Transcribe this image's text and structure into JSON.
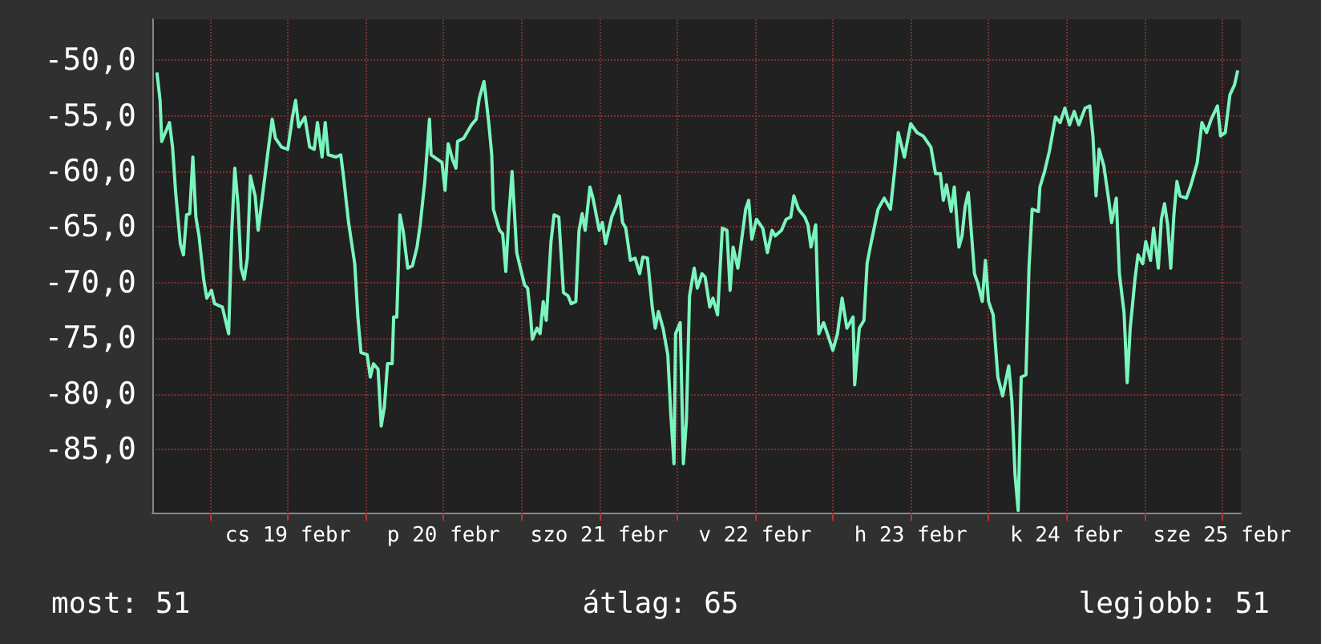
{
  "chart_data": {
    "type": "line",
    "x": [
      "--02-18T15:50",
      "--02-18T16:19",
      "--02-18T16:34",
      "--02-18T17:46",
      "--02-18T18:14",
      "--02-18T18:43",
      "--02-18T19:26",
      "--02-18T19:55",
      "--02-18T20:24",
      "--02-18T20:53",
      "--02-18T21:22",
      "--02-18T21:50",
      "--02-18T22:19",
      "--02-18T23:02",
      "--02-18T23:31",
      "--02-19T00:14",
      "--02-19T00:43",
      "--02-19T01:55",
      "--02-19T02:53",
      "--02-19T03:22",
      "--02-19T03:50",
      "--02-19T04:19",
      "--02-19T04:48",
      "--02-19T05:17",
      "--02-19T05:46",
      "--02-19T06:14",
      "--02-19T06:58",
      "--02-19T07:26",
      "--02-19T08:10",
      "--02-19T08:53",
      "--02-19T09:36",
      "--02-19T10:05",
      "--02-19T11:02",
      "--02-19T12:00",
      "--02-19T12:43",
      "--02-19T13:12",
      "--02-19T13:41",
      "--02-19T14:38",
      "--02-19T15:22",
      "--02-19T16:05",
      "--02-19T16:34",
      "--02-19T17:17",
      "--02-19T17:46",
      "--02-19T18:14",
      "--02-19T19:26",
      "--02-19T20:10",
      "--02-19T20:38",
      "--02-19T21:22",
      "--02-19T22:19",
      "--02-19T22:48",
      "--02-19T23:17",
      "--02-20T00:14",
      "--02-20T00:43",
      "--02-20T01:12",
      "--02-20T01:55",
      "--02-20T02:24",
      "--02-20T02:53",
      "--02-20T03:22",
      "--02-20T04:05",
      "--02-20T04:19",
      "--02-20T04:48",
      "--02-20T05:17",
      "--02-20T05:46",
      "--02-20T06:29",
      "--02-20T07:12",
      "--02-20T07:55",
      "--02-20T08:24",
      "--02-20T09:07",
      "--02-20T09:50",
      "--02-20T10:05",
      "--02-20T11:46",
      "--02-20T12:14",
      "--02-20T12:43",
      "--02-20T13:26",
      "--02-20T13:55",
      "--02-20T14:10",
      "--02-20T15:07",
      "--02-20T16:19",
      "--02-20T17:02",
      "--02-20T17:31",
      "--02-20T18:14",
      "--02-20T18:29",
      "--02-20T18:58",
      "--02-20T19:26",
      "--02-20T19:41",
      "--02-20T20:38",
      "--02-20T21:07",
      "--02-20T21:36",
      "--02-20T22:05",
      "--02-20T22:34",
      "--02-20T23:17",
      "--02-20T23:46",
      "--02-21T00:29",
      "--02-21T00:58",
      "--02-21T01:26",
      "--02-21T01:41",
      "--02-21T02:24",
      "--02-21T02:53",
      "--02-21T03:22",
      "--02-21T03:50",
      "--02-21T04:34",
      "--02-21T05:02",
      "--02-21T05:46",
      "--02-21T06:29",
      "--02-21T07:12",
      "--02-21T07:41",
      "--02-21T08:24",
      "--02-21T08:53",
      "--02-21T09:22",
      "--02-21T09:50",
      "--02-21T10:34",
      "--02-21T11:02",
      "--02-21T12:00",
      "--02-21T12:29",
      "--02-21T12:58",
      "--02-21T13:55",
      "--02-21T14:38",
      "--02-21T15:07",
      "--02-21T15:36",
      "--02-21T16:05",
      "--02-21T16:48",
      "--02-21T17:31",
      "--02-21T18:14",
      "--02-21T18:43",
      "--02-21T19:26",
      "--02-21T20:10",
      "--02-21T20:38",
      "--02-21T21:07",
      "--02-21T21:50",
      "--02-21T22:34",
      "--02-21T23:02",
      "--02-21T23:31",
      "--02-21T23:46",
      "--02-22T00:29",
      "--02-22T00:58",
      "--02-22T01:26",
      "--02-22T01:55",
      "--02-22T02:38",
      "--02-22T03:07",
      "--02-22T03:50",
      "--02-22T04:19",
      "--02-22T05:02",
      "--02-22T05:31",
      "--02-22T06:14",
      "--02-22T06:58",
      "--02-22T07:41",
      "--02-22T08:10",
      "--02-22T08:38",
      "--02-22T09:22",
      "--02-22T10:34",
      "--02-22T11:02",
      "--02-22T11:31",
      "--02-22T12:14",
      "--02-22T13:12",
      "--02-22T13:55",
      "--02-22T14:38",
      "--02-22T15:07",
      "--02-22T16:05",
      "--02-22T16:48",
      "--02-22T17:31",
      "--02-22T18:00",
      "--02-22T18:43",
      "--02-22T19:41",
      "--02-22T20:10",
      "--02-22T20:38",
      "--02-22T21:22",
      "--02-22T21:50",
      "--02-22T22:34",
      "--02-22T23:17",
      "--02-23T00:00",
      "--02-23T00:43",
      "--02-23T01:26",
      "--02-23T02:10",
      "--02-23T03:07",
      "--02-23T03:22",
      "--02-23T04:05",
      "--02-23T04:48",
      "--02-23T05:17",
      "--02-23T05:46",
      "--02-23T06:58",
      "--02-23T07:55",
      "--02-23T08:53",
      "--02-23T09:36",
      "--02-23T10:05",
      "--02-23T11:02",
      "--02-23T12:00",
      "--02-23T12:58",
      "--02-23T13:55",
      "--02-23T15:07",
      "--02-23T15:50",
      "--02-23T16:34",
      "--02-23T17:02",
      "--02-23T17:31",
      "--02-23T18:14",
      "--02-23T18:43",
      "--02-23T19:26",
      "--02-23T19:55",
      "--02-23T20:24",
      "--02-23T20:53",
      "--02-23T21:50",
      "--02-23T22:19",
      "--02-23T23:02",
      "--02-23T23:31",
      "--02-24T00:00",
      "--02-24T00:43",
      "--02-24T01:26",
      "--02-24T02:10",
      "--02-24T03:07",
      "--02-24T03:36",
      "--02-24T04:05",
      "--02-24T04:34",
      "--02-24T05:02",
      "--02-24T05:46",
      "--02-24T06:14",
      "--02-24T06:43",
      "--02-24T07:41",
      "--02-24T07:55",
      "--02-24T08:38",
      "--02-24T09:22",
      "--02-24T10:19",
      "--02-24T11:02",
      "--02-24T11:46",
      "--02-24T12:29",
      "--02-24T13:12",
      "--02-24T13:55",
      "--02-24T14:53",
      "--02-24T15:36",
      "--02-24T16:05",
      "--02-24T16:34",
      "--02-24T17:02",
      "--02-24T17:46",
      "--02-24T18:29",
      "--02-24T18:58",
      "--02-24T19:41",
      "--02-24T20:10",
      "--02-24T20:53",
      "--02-24T21:22",
      "--02-24T21:50",
      "--02-24T22:34",
      "--02-24T23:02",
      "--02-24T23:46",
      "--02-25T00:14",
      "--02-25T00:58",
      "--02-25T01:26",
      "--02-25T02:10",
      "--02-25T02:38",
      "--02-25T03:07",
      "--02-25T03:36",
      "--02-25T04:05",
      "--02-25T04:34",
      "--02-25T05:02",
      "--02-25T05:31",
      "--02-25T06:29",
      "--02-25T07:12",
      "--02-25T08:10",
      "--02-25T08:53",
      "--02-25T09:36",
      "--02-25T10:19",
      "--02-25T11:17",
      "--02-25T11:46",
      "--02-25T12:29",
      "--02-25T13:12",
      "--02-25T13:55",
      "--02-25T14:24"
    ],
    "series": [
      {
        "color": "#7af5be",
        "values": [
          -51.1,
          -53.6,
          -57.3,
          -55.6,
          -57.8,
          -61.9,
          -66.5,
          -67.5,
          -63.9,
          -63.8,
          -58.7,
          -64.1,
          -65.8,
          -69.7,
          -71.4,
          -70.7,
          -71.9,
          -72.2,
          -74.6,
          -65.3,
          -59.7,
          -62.9,
          -68.7,
          -69.7,
          -67.8,
          -60.4,
          -62.2,
          -65.3,
          -61.9,
          -58.5,
          -55.3,
          -57.0,
          -57.8,
          -58.0,
          -55.1,
          -53.6,
          -56.0,
          -55.1,
          -57.8,
          -58.0,
          -55.6,
          -58.7,
          -55.6,
          -58.5,
          -58.7,
          -58.5,
          -60.7,
          -64.6,
          -68.3,
          -73.1,
          -76.3,
          -76.5,
          -78.5,
          -77.3,
          -77.8,
          -82.9,
          -81.2,
          -77.3,
          -77.3,
          -73.1,
          -73.1,
          -63.9,
          -65.3,
          -68.7,
          -68.5,
          -66.8,
          -64.8,
          -60.9,
          -55.3,
          -58.5,
          -59.2,
          -61.7,
          -57.5,
          -59.0,
          -59.7,
          -57.3,
          -57.0,
          -55.8,
          -55.3,
          -53.4,
          -51.9,
          -53.1,
          -55.6,
          -58.5,
          -63.4,
          -65.3,
          -65.6,
          -69.0,
          -63.9,
          -60.0,
          -67.3,
          -68.5,
          -70.2,
          -70.5,
          -73.1,
          -75.1,
          -74.1,
          -74.6,
          -71.7,
          -73.4,
          -66.3,
          -63.9,
          -64.1,
          -70.9,
          -71.2,
          -71.9,
          -71.7,
          -65.3,
          -63.8,
          -65.3,
          -61.4,
          -62.4,
          -65.3,
          -64.6,
          -66.5,
          -64.1,
          -63.1,
          -62.2,
          -64.6,
          -65.1,
          -68.0,
          -67.8,
          -69.2,
          -67.7,
          -67.8,
          -72.2,
          -74.1,
          -72.6,
          -74.1,
          -76.5,
          -81.9,
          -86.3,
          -74.6,
          -73.6,
          -86.3,
          -82.4,
          -71.2,
          -68.7,
          -70.5,
          -69.2,
          -69.5,
          -72.2,
          -71.4,
          -72.9,
          -65.1,
          -65.3,
          -70.7,
          -66.8,
          -68.7,
          -63.4,
          -62.6,
          -66.1,
          -64.3,
          -65.1,
          -67.3,
          -65.3,
          -65.8,
          -65.3,
          -64.3,
          -64.1,
          -62.2,
          -63.4,
          -64.1,
          -64.8,
          -66.8,
          -64.8,
          -74.6,
          -73.6,
          -74.8,
          -76.1,
          -74.6,
          -71.4,
          -74.1,
          -73.1,
          -79.2,
          -74.1,
          -73.4,
          -68.3,
          -66.8,
          -63.4,
          -62.4,
          -63.4,
          -59.5,
          -56.5,
          -58.7,
          -55.7,
          -56.5,
          -56.8,
          -57.8,
          -60.2,
          -60.2,
          -62.6,
          -61.2,
          -63.6,
          -61.4,
          -66.8,
          -65.8,
          -63.1,
          -61.9,
          -69.2,
          -70.0,
          -71.7,
          -68.0,
          -71.7,
          -72.9,
          -78.5,
          -80.2,
          -77.5,
          -80.7,
          -87.3,
          -90.5,
          -78.5,
          -78.3,
          -68.7,
          -63.4,
          -63.6,
          -61.4,
          -60.0,
          -58.2,
          -55.1,
          -55.6,
          -54.3,
          -55.8,
          -54.6,
          -55.8,
          -54.3,
          -54.1,
          -56.8,
          -62.2,
          -58.0,
          -59.5,
          -62.4,
          -64.6,
          -62.4,
          -69.2,
          -72.7,
          -79.0,
          -74.1,
          -69.7,
          -67.5,
          -68.3,
          -66.3,
          -68.0,
          -65.1,
          -68.7,
          -64.3,
          -62.9,
          -64.8,
          -68.7,
          -63.9,
          -60.9,
          -62.2,
          -62.4,
          -61.2,
          -59.2,
          -55.6,
          -56.5,
          -55.3,
          -54.1,
          -56.8,
          -56.5,
          -53.1,
          -52.2,
          -50.9
        ]
      }
    ],
    "xlim": [
      "--02-18T15:07",
      "--02-25T14:53"
    ],
    "ylim": [
      -90.7,
      -46.3
    ],
    "xticks": [
      {
        "value": "--02-19T00:00",
        "label": null
      },
      {
        "value": "--02-19T12:00",
        "label": "cs 19 febr"
      },
      {
        "value": "--02-20T00:00",
        "label": null
      },
      {
        "value": "--02-20T12:00",
        "label": "p 20 febr"
      },
      {
        "value": "--02-21T00:00",
        "label": null
      },
      {
        "value": "--02-21T12:00",
        "label": "szo 21 febr"
      },
      {
        "value": "--02-22T00:00",
        "label": null
      },
      {
        "value": "--02-22T12:00",
        "label": "v 22 febr"
      },
      {
        "value": "--02-23T00:00",
        "label": null
      },
      {
        "value": "--02-23T12:00",
        "label": "h 23 febr"
      },
      {
        "value": "--02-24T00:00",
        "label": null
      },
      {
        "value": "--02-24T12:00",
        "label": "k 24 febr"
      },
      {
        "value": "--02-25T00:00",
        "label": null
      },
      {
        "value": "--02-25T12:00",
        "label": "sze 25 febr"
      }
    ],
    "yticks": [
      {
        "value": -50,
        "label": "-50,0"
      },
      {
        "value": -55,
        "label": "-55,0"
      },
      {
        "value": -60,
        "label": "-60,0"
      },
      {
        "value": -65,
        "label": "-65,0"
      },
      {
        "value": -70,
        "label": "-70,0"
      },
      {
        "value": -75,
        "label": "-75,0"
      },
      {
        "value": -80,
        "label": "-80,0"
      },
      {
        "value": -85,
        "label": "-85,0"
      }
    ],
    "grid": true,
    "annotations": [
      "most: 51",
      "átlag: 65",
      "legjobb: 51"
    ]
  }
}
